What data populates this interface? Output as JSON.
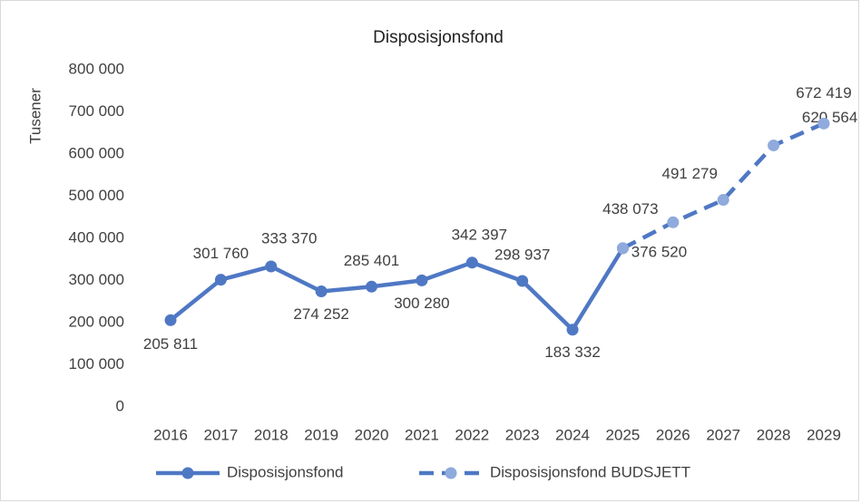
{
  "chart_data": {
    "type": "line",
    "title": "Disposisjonsfond",
    "y_label": "Tusener",
    "categories": [
      "2016",
      "2017",
      "2018",
      "2019",
      "2020",
      "2021",
      "2022",
      "2023",
      "2024",
      "2025",
      "2026",
      "2027",
      "2028",
      "2029"
    ],
    "series": [
      {
        "name": "Disposisjonsfond",
        "color": "#4f78c4",
        "marker_color": "#4f78c4",
        "dashed": false,
        "values": [
          205811,
          301760,
          333370,
          274252,
          285401,
          300280,
          342397,
          298937,
          183332,
          376520,
          null,
          null,
          null,
          null
        ],
        "value_labels": [
          "205 811",
          "301 760",
          "333 370",
          "274 252",
          "285 401",
          "300 280",
          "342 397",
          "298 937",
          "183 332",
          "376 520",
          null,
          null,
          null,
          null
        ]
      },
      {
        "name": "Disposisjonsfond BUDSJETT",
        "color": "#4f78c4",
        "marker_color": "#8faadc",
        "dashed": true,
        "values": [
          null,
          null,
          null,
          null,
          null,
          null,
          null,
          null,
          null,
          376520,
          438073,
          491279,
          620564,
          672419
        ],
        "value_labels": [
          null,
          null,
          null,
          null,
          null,
          null,
          null,
          null,
          null,
          null,
          "438 073",
          "491 279",
          "620 564",
          "672 419"
        ]
      }
    ],
    "ylim": [
      0,
      800000
    ],
    "yticks": [
      0,
      {
        "value": 100000,
        "label": "100 000"
      },
      {
        "value": 200000,
        "label": "200 000"
      },
      {
        "value": 300000,
        "label": "300 000"
      },
      {
        "value": 400000,
        "label": "400 000"
      },
      {
        "value": 500000,
        "label": "500 000"
      },
      {
        "value": 600000,
        "label": "600 000"
      },
      {
        "value": 700000,
        "label": "700 000"
      },
      {
        "value": 800000,
        "label": "800 000"
      }
    ],
    "grid": false,
    "legend": "bottom"
  }
}
